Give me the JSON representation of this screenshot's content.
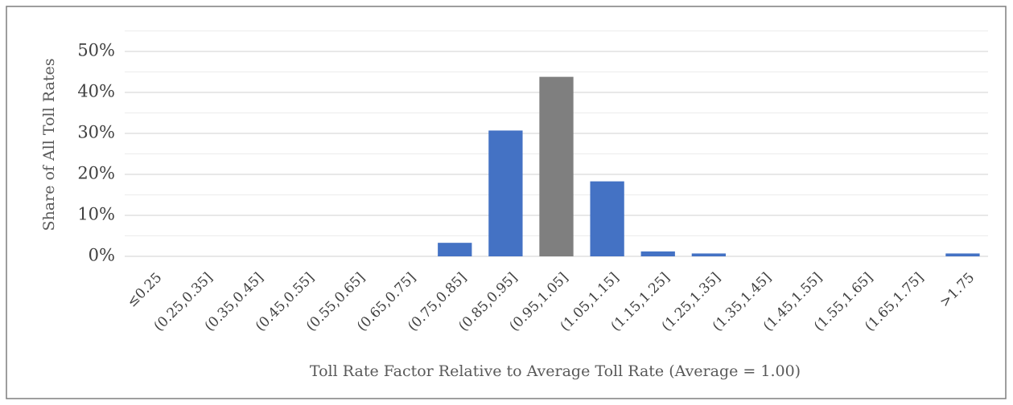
{
  "chart_data": {
    "type": "bar",
    "x_label": "Toll Rate Factor Relative to Average Toll Rate (Average = 1.00)",
    "y_label": "Share of All Toll Rates",
    "categories": [
      "≤0.25",
      "(0.25,0.35]",
      "(0.35,0.45]",
      "(0.45,0.55]",
      "(0.55,0.65]",
      "(0.65,0.75]",
      "(0.75,0.85]",
      "(0.85,0.95]",
      "(0.95,1.05]",
      "(1.05,1.15]",
      "(1.15,1.25]",
      "(1.25,1.35]",
      "(1.35,1.45]",
      "(1.45,1.55]",
      "(1.55,1.65]",
      "(1.65,1.75]",
      ">1.75"
    ],
    "values": [
      0,
      0,
      0,
      0,
      0,
      0,
      3.3,
      30.7,
      43.8,
      18.3,
      1.2,
      0.7,
      0,
      0,
      0,
      0,
      0.7
    ],
    "colors": [
      "#4472c4",
      "#4472c4",
      "#4472c4",
      "#4472c4",
      "#4472c4",
      "#4472c4",
      "#4472c4",
      "#4472c4",
      "#7f7f7f",
      "#4472c4",
      "#4472c4",
      "#4472c4",
      "#4472c4",
      "#4472c4",
      "#4472c4",
      "#4472c4",
      "#4472c4"
    ],
    "ylim": [
      0,
      55
    ],
    "yticks": [
      {
        "value": 0,
        "label": "0%"
      },
      {
        "value": 10,
        "label": "10%"
      },
      {
        "value": 20,
        "label": "20%"
      },
      {
        "value": 30,
        "label": "30%"
      },
      {
        "value": 40,
        "label": "40%"
      },
      {
        "value": 50,
        "label": "50%"
      }
    ],
    "minor_gridlines": [
      5,
      15,
      25,
      35,
      45,
      55
    ],
    "grid": true
  }
}
